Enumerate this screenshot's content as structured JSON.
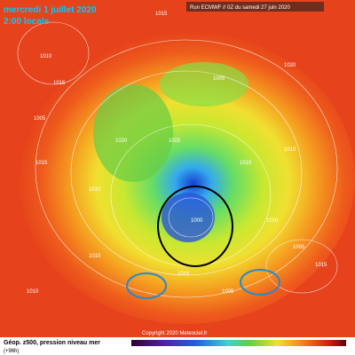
{
  "header": {
    "date": "mercredi 1 juillet 2020",
    "time": "2:00 locale",
    "run": "Run ECMWF // 0Z du samedi 27 juin 2020"
  },
  "footer": {
    "title": "Géop. z500, pression niveau mer",
    "lead": "(+96h)",
    "copyright": "Copyright 2020 Meteociel.fr"
  },
  "isobar_labels": [
    "1015",
    "1010",
    "1005",
    "1015",
    "1010",
    "1020",
    "1025",
    "1015",
    "1005",
    "1000",
    "1010",
    "1015",
    "1010",
    "1005",
    "1015",
    "1020",
    "1010",
    "1015",
    "1005",
    "1010"
  ]
}
